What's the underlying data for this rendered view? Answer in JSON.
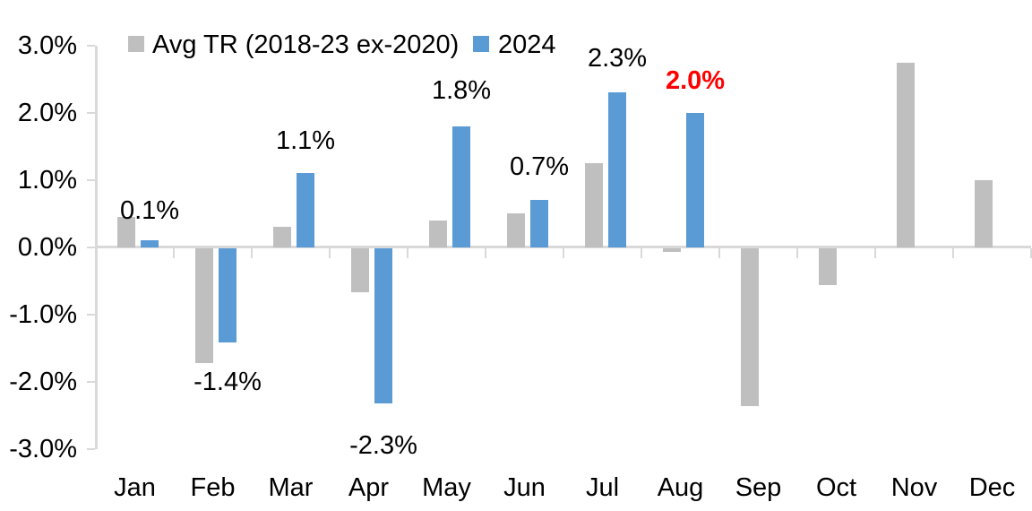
{
  "chart_data": {
    "type": "bar",
    "title": "",
    "categories": [
      "Jan",
      "Feb",
      "Mar",
      "Apr",
      "May",
      "Jun",
      "Jul",
      "Aug",
      "Sep",
      "Oct",
      "Nov",
      "Dec"
    ],
    "series": [
      {
        "name": "Avg TR (2018-23 ex-2020)",
        "color": "#BFBFBF",
        "values": [
          0.45,
          -1.7,
          0.3,
          -0.65,
          0.4,
          0.5,
          1.25,
          -0.05,
          -2.35,
          -0.55,
          2.75,
          1.0
        ]
      },
      {
        "name": "2024",
        "color": "#5B9BD5",
        "values": [
          0.1,
          -1.4,
          1.1,
          -2.3,
          1.8,
          0.7,
          2.3,
          2.0,
          null,
          null,
          null,
          null
        ]
      }
    ],
    "data_labels": [
      {
        "category": "Jan",
        "text": "0.1%",
        "color": "#000000",
        "bold": false
      },
      {
        "category": "Feb",
        "text": "-1.4%",
        "color": "#000000",
        "bold": false
      },
      {
        "category": "Mar",
        "text": "1.1%",
        "color": "#000000",
        "bold": false
      },
      {
        "category": "Apr",
        "text": "-2.3%",
        "color": "#000000",
        "bold": false
      },
      {
        "category": "May",
        "text": "1.8%",
        "color": "#000000",
        "bold": false
      },
      {
        "category": "Jun",
        "text": "0.7%",
        "color": "#000000",
        "bold": false
      },
      {
        "category": "Jul",
        "text": "2.3%",
        "color": "#000000",
        "bold": false
      },
      {
        "category": "Aug",
        "text": "2.0%",
        "color": "#FF0000",
        "bold": true
      }
    ],
    "y_axis": {
      "tick_labels": [
        "3.0%",
        "2.0%",
        "1.0%",
        "0.0%",
        "-1.0%",
        "-2.0%",
        "-3.0%"
      ],
      "min": -3.0,
      "max": 3.0,
      "step": 1.0
    },
    "x_axis_label": "",
    "y_axis_label": "",
    "grid": false,
    "legend_position": "top",
    "axis_color": "#D9D9D9",
    "text_color": "#000000"
  }
}
